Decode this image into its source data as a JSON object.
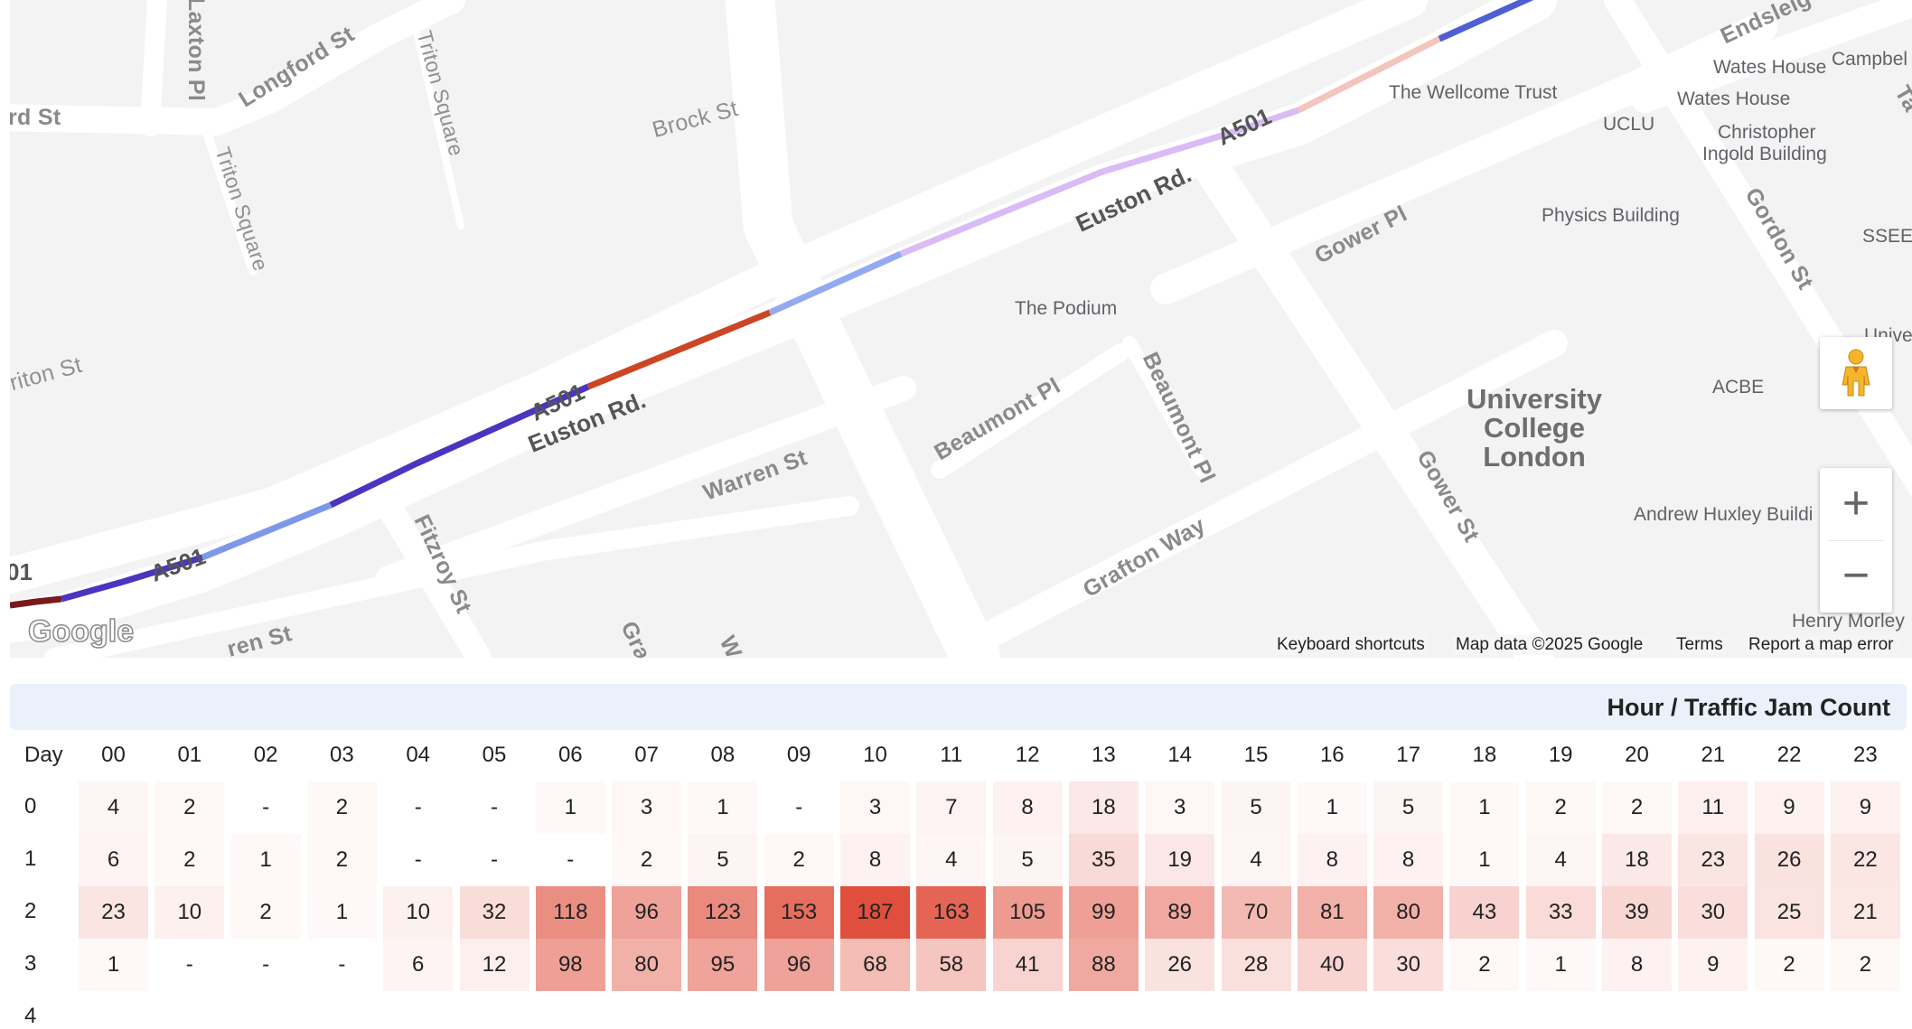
{
  "map": {
    "streets": {
      "laxton_pl": "Laxton Pl",
      "rd_st": "rd St",
      "longford_st": "Longford St",
      "triton_square_1": "Triton Square",
      "triton_square_2": "Triton Square",
      "brock_st": "Brock St",
      "triton_st": "riton St",
      "a501_1": "01",
      "a501_2": "A501",
      "a501_3": "A501",
      "a501_4": "A501",
      "euston_rd_1": "Euston Rd.",
      "euston_rd_2": "Euston Rd.",
      "warren_st_1": "Warren St",
      "warren_st_2": "ren St",
      "fitzroy_st": "Fitzroy St",
      "grafton_partial": "Gra",
      "w_partial": "W",
      "beaumont_pl_1": "Beaumont Pl",
      "beaumont_pl_2": "Beaumont Pl",
      "grafton_way": "Grafton Way",
      "gower_st": "Gower St",
      "gower_pl": "Gower Pl",
      "gordon_st": "Gordon St",
      "endsleigh": "Endsleig",
      "ta_partial": "Ta"
    },
    "places": {
      "podium": "The Podium",
      "wellcome": "The Wellcome Trust",
      "uclu": "UCLU",
      "wates_1": "Wates House",
      "wates_2": "Wates House",
      "campbell": "Campbel",
      "christopher_1": "Christopher",
      "christopher_2": "Ingold Building",
      "physics": "Physics Building",
      "ssees": "SSEES",
      "ucl_1": "University",
      "ucl_2": "College",
      "ucl_3": "London",
      "acbe": "ACBE",
      "huxley": "Andrew Huxley Buildi",
      "henry_morley": "Henry Morley",
      "unive": "Unive"
    },
    "route_colors": [
      "#7a1a1a",
      "#4b34c0",
      "#7d98e8",
      "#4b34c0",
      "#cc4524",
      "#92aaf0",
      "#d9bbf6",
      "#f2c6ba",
      "#4d5fd2"
    ],
    "logo": "Google",
    "controls": {
      "zoom_in": "+",
      "zoom_out": "−",
      "pegman_icon": "pegman-icon"
    },
    "footer": {
      "keyboard": "Keyboard shortcuts",
      "map_data": "Map data ©2025 Google",
      "terms": "Terms",
      "report": "Report a map error"
    }
  },
  "table": {
    "title": "Hour / Traffic Jam Count",
    "day_header": "Day",
    "hours": [
      "00",
      "01",
      "02",
      "03",
      "04",
      "05",
      "06",
      "07",
      "08",
      "09",
      "10",
      "11",
      "12",
      "13",
      "14",
      "15",
      "16",
      "17",
      "18",
      "19",
      "20",
      "21",
      "22",
      "23"
    ],
    "empty_symbol": "-",
    "max_color": "#e04f3d",
    "max_value": 187,
    "rows": [
      {
        "day": "0",
        "values": [
          4,
          2,
          null,
          2,
          null,
          null,
          1,
          3,
          1,
          null,
          3,
          7,
          8,
          18,
          3,
          5,
          1,
          5,
          1,
          2,
          2,
          11,
          9,
          9
        ]
      },
      {
        "day": "1",
        "values": [
          6,
          2,
          1,
          2,
          null,
          null,
          null,
          2,
          5,
          2,
          8,
          4,
          5,
          35,
          19,
          4,
          8,
          8,
          1,
          4,
          18,
          23,
          26,
          22
        ]
      },
      {
        "day": "2",
        "values": [
          23,
          10,
          2,
          1,
          10,
          32,
          118,
          96,
          123,
          153,
          187,
          163,
          105,
          99,
          89,
          70,
          81,
          80,
          43,
          33,
          39,
          30,
          25,
          21
        ]
      },
      {
        "day": "3",
        "values": [
          1,
          null,
          null,
          null,
          6,
          12,
          98,
          80,
          95,
          96,
          68,
          58,
          41,
          88,
          26,
          28,
          40,
          30,
          2,
          1,
          8,
          9,
          2,
          2
        ]
      },
      {
        "day": "4",
        "values": []
      }
    ]
  }
}
